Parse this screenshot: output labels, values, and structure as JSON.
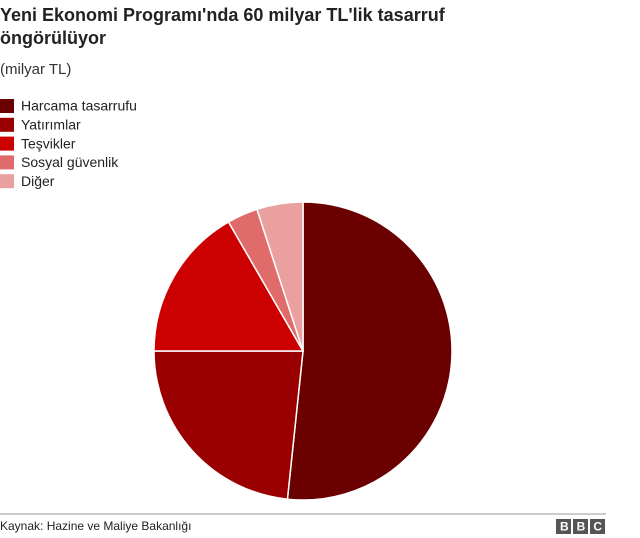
{
  "chart_data": {
    "type": "pie",
    "title": "Yeni Ekonomi Programı'nda 60 milyar TL'lik tasarruf öngörülüyor",
    "subtitle": "(milyar TL)",
    "categories": [
      "Harcama tasarrufu",
      "Yatırımlar",
      "Teşvikler",
      "Sosyal güvenlik",
      "Diğer"
    ],
    "values": [
      31,
      14,
      10,
      2,
      3
    ],
    "colors": [
      "#6b0000",
      "#9b0000",
      "#cc0000",
      "#e06b6b",
      "#eba0a0"
    ],
    "legend": "top-left",
    "source": "Kaynak: Hazine ve Maliye Bakanlığı",
    "logo": "BBC"
  }
}
